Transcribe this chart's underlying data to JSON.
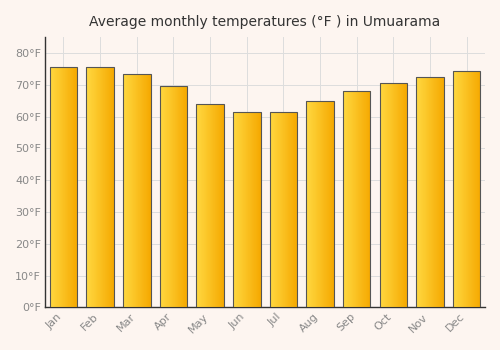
{
  "title": "Average monthly temperatures (°F ) in Umuarama",
  "months": [
    "Jan",
    "Feb",
    "Mar",
    "Apr",
    "May",
    "Jun",
    "Jul",
    "Aug",
    "Sep",
    "Oct",
    "Nov",
    "Dec"
  ],
  "values": [
    75.5,
    75.7,
    73.5,
    69.5,
    64.0,
    61.3,
    61.5,
    65.0,
    68.0,
    70.5,
    72.5,
    74.5
  ],
  "bar_color_dark": "#F5A800",
  "bar_color_light": "#FFD840",
  "bar_edge_color": "#555555",
  "ylim": [
    0,
    85
  ],
  "yticks": [
    0,
    10,
    20,
    30,
    40,
    50,
    60,
    70,
    80
  ],
  "ytick_labels": [
    "0°F",
    "10°F",
    "20°F",
    "30°F",
    "40°F",
    "50°F",
    "60°F",
    "70°F",
    "80°F"
  ],
  "grid_color": "#dddddd",
  "background_color": "#fdf5f0",
  "plot_bg_color": "#fdf5f0",
  "title_fontsize": 10,
  "tick_fontsize": 8,
  "tick_color": "#888888",
  "bar_width": 0.75,
  "bar_edge_linewidth": 0.8
}
